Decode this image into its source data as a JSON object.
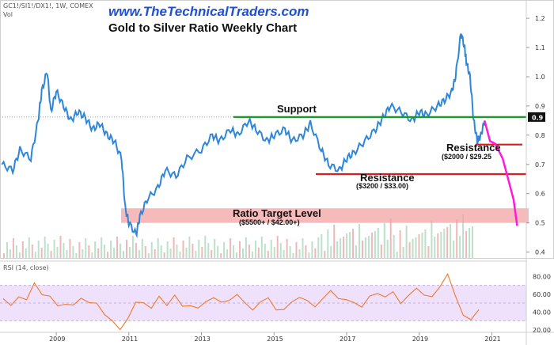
{
  "header": {
    "ticker": "GC1!/SI1!/DX1!, 1W, COMEX",
    "volume_label": "Vol",
    "website": "www.TheTechnicalTraders.com",
    "title": "Gold to Silver Ratio Weekly Chart"
  },
  "annotations": {
    "support": "Support",
    "resistance1": "Resistance",
    "resistance1_detail": "($2000 / $29.25",
    "resistance2": "Resistance",
    "resistance2_detail": "($3200 / $33.00)",
    "target": "Ratio Target Level",
    "target_detail": "($5500+ / $42.00+)"
  },
  "rsi": {
    "label": "RSI (14, close)",
    "ticks": [
      "80.00",
      "60.00",
      "40.00",
      "20.00"
    ]
  },
  "colors": {
    "price_line": "#2f86d8",
    "support": "#1a9a2a",
    "resistance": "#d61f1f",
    "projection": "#ff1ad9",
    "target_band": "#f4a3a3",
    "rsi_line": "#ee7a2c",
    "rsi_band": "#efe0fb",
    "website_text": "#1f4fd6",
    "price_badge": "#111111"
  },
  "chart_data": {
    "type": "line",
    "title": "Gold to Silver Ratio Weekly Chart",
    "x_ticks": [
      "2009",
      "2011",
      "2013",
      "2015",
      "2017",
      "2019",
      "2021"
    ],
    "y_ticks": [
      "1.2",
      "1.1",
      "1.0",
      "0.9",
      "0.8",
      "0.7",
      "0.6",
      "0.5",
      "0.4"
    ],
    "ylim": [
      0.38,
      1.23
    ],
    "last_value_label": "0.9",
    "series": [
      {
        "x": [
          2007.5,
          2007.8,
          2008.0,
          2008.3,
          2008.5,
          2008.6,
          2008.75,
          2008.85,
          2009.0,
          2009.2,
          2009.4,
          2009.6,
          2009.8,
          2010.0,
          2010.2,
          2010.4,
          2010.6,
          2010.8,
          2010.9,
          2011.0,
          2011.2,
          2011.3,
          2011.5,
          2011.8,
          2012.0,
          2012.3,
          2012.6,
          2013.0,
          2013.3,
          2013.5,
          2013.8,
          2014.0,
          2014.3,
          2014.5,
          2014.8,
          2015.0,
          2015.3,
          2015.5,
          2015.8,
          2016.0,
          2016.3,
          2016.5,
          2016.8,
          2017.0,
          2017.2,
          2017.5,
          2017.8,
          2018.0,
          2018.2,
          2018.5,
          2018.8,
          2019.0,
          2019.2,
          2019.5,
          2019.7,
          2019.9,
          2020.0,
          2020.15,
          2020.25,
          2020.3,
          2020.4,
          2020.5,
          2020.6,
          2020.7,
          2020.8
        ],
        "values": [
          0.7,
          0.68,
          0.75,
          0.72,
          0.85,
          0.95,
          1.02,
          0.88,
          0.95,
          0.9,
          0.85,
          0.88,
          0.86,
          0.82,
          0.84,
          0.8,
          0.78,
          0.72,
          0.55,
          0.5,
          0.46,
          0.52,
          0.58,
          0.62,
          0.68,
          0.66,
          0.72,
          0.75,
          0.8,
          0.78,
          0.82,
          0.8,
          0.85,
          0.82,
          0.78,
          0.8,
          0.82,
          0.78,
          0.8,
          0.84,
          0.75,
          0.7,
          0.68,
          0.72,
          0.74,
          0.78,
          0.82,
          0.86,
          0.9,
          0.88,
          0.85,
          0.88,
          0.87,
          0.9,
          0.92,
          0.95,
          1.0,
          1.15,
          1.1,
          1.05,
          1.0,
          0.85,
          0.78,
          0.8,
          0.85
        ]
      }
    ],
    "levels": {
      "support": 0.862,
      "resistance_upper": 0.768,
      "resistance_lower": 0.667,
      "target_band": [
        0.5,
        0.55
      ]
    },
    "projection": {
      "x": [
        2020.8,
        2020.95,
        2021.1,
        2021.3,
        2021.45,
        2021.6,
        2021.7
      ],
      "values": [
        0.85,
        0.78,
        0.77,
        0.72,
        0.65,
        0.58,
        0.49
      ]
    },
    "rsi_values": [
      55,
      45,
      60,
      52,
      72,
      62,
      55,
      48,
      50,
      45,
      58,
      50,
      48,
      40,
      28,
      20,
      35,
      48,
      52,
      45,
      55,
      50,
      58,
      45,
      50,
      42,
      52,
      58,
      48,
      55,
      60,
      48,
      45,
      50,
      55,
      45,
      40,
      52,
      58,
      50,
      48,
      55,
      62,
      58,
      52,
      50,
      48,
      55,
      62,
      58,
      60,
      52,
      58,
      65,
      62,
      55,
      68,
      85,
      55,
      38,
      32,
      40
    ],
    "rsi_bands": [
      30,
      70
    ]
  }
}
